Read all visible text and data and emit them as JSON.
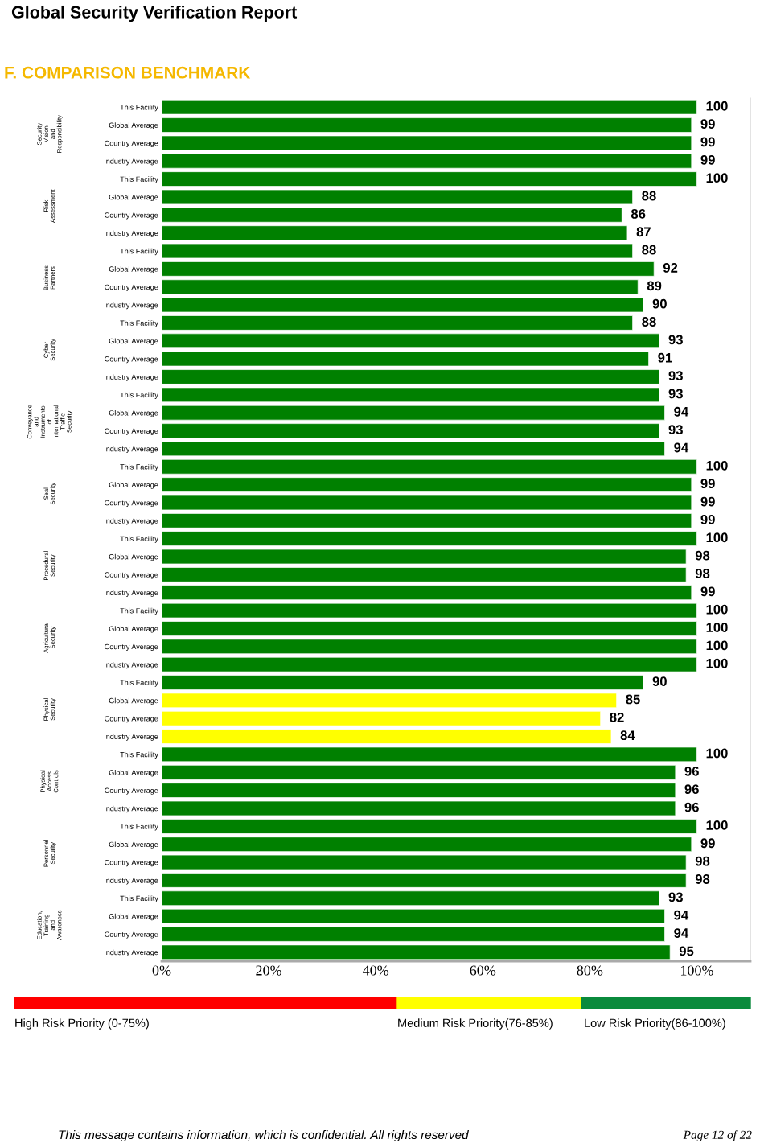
{
  "chart_data": {
    "type": "bar",
    "orientation": "horizontal",
    "title": "Global Security Verification Report",
    "subtitle": "F. COMPARISON BENCHMARK",
    "categories": [
      "This Facility",
      "Global Average",
      "Country Average",
      "Industry Average",
      "This Facility",
      "Global Average",
      "Country Average",
      "Industry Average",
      "This Facility",
      "Global Average",
      "Country Average",
      "Industry Average",
      "This Facility",
      "Global Average",
      "Country Average",
      "Industry Average",
      "This Facility",
      "Global Average",
      "Country Average",
      "Industry Average",
      "This Facility",
      "Global Average",
      "Country Average",
      "Industry Average",
      "This Facility",
      "Global Average",
      "Country Average",
      "Industry Average",
      "This Facility",
      "Global Average",
      "Country Average",
      "Industry Average",
      "This Facility",
      "Global Average",
      "Country Average",
      "Industry Average",
      "This Facility",
      "Global Average",
      "Country Average",
      "Industry Average",
      "This Facility",
      "Global Average",
      "Country Average",
      "Industry Average",
      "This Facility",
      "Global Average",
      "Country Average",
      "Industry Average"
    ],
    "values": [
      100,
      99,
      99,
      99,
      100,
      88,
      86,
      87,
      88,
      92,
      89,
      90,
      88,
      93,
      91,
      93,
      93,
      94,
      93,
      94,
      100,
      99,
      99,
      99,
      100,
      98,
      98,
      99,
      100,
      100,
      100,
      100,
      90,
      85,
      82,
      84,
      100,
      96,
      96,
      96,
      100,
      99,
      98,
      98,
      93,
      94,
      94,
      95
    ],
    "colors": [
      "#008000",
      "#008000",
      "#008000",
      "#008000",
      "#008000",
      "#008000",
      "#008000",
      "#008000",
      "#008000",
      "#008000",
      "#008000",
      "#008000",
      "#008000",
      "#008000",
      "#008000",
      "#008000",
      "#008000",
      "#008000",
      "#008000",
      "#008000",
      "#008000",
      "#008000",
      "#008000",
      "#008000",
      "#008000",
      "#008000",
      "#008000",
      "#008000",
      "#008000",
      "#008000",
      "#008000",
      "#008000",
      "#008000",
      "#ffff00",
      "#ffff00",
      "#ffff00",
      "#008000",
      "#008000",
      "#008000",
      "#008000",
      "#008000",
      "#008000",
      "#008000",
      "#008000",
      "#008000",
      "#008000",
      "#008000",
      "#008000"
    ],
    "data_labels": true,
    "xlim": [
      0,
      110
    ],
    "xticks": [
      {
        "value": 0,
        "label": "0%"
      },
      {
        "value": 20,
        "label": "20%"
      },
      {
        "value": 40,
        "label": "40%"
      },
      {
        "value": 60,
        "label": "60%"
      },
      {
        "value": 80,
        "label": "80%"
      },
      {
        "value": 100,
        "label": "100%"
      }
    ],
    "annotations": [
      "Security\nVision\nand\nResponsibility",
      "Risk\nAssessment",
      "Business\nPartners",
      "Cyber\nSecurity",
      "Conveyance\nand\nInstruments\nof\nInternational\nTraffic\nSecurity",
      "Seal\nSecurity",
      "Procedural\nSecurity",
      "Agricultural\nSecurity",
      "Physical\nSecurity",
      "Physical\nAccess\nControls",
      "Personnel\nSecurity",
      "Education,\nTraining\nand\nAwareness",
      "High Risk Priority (0-75%)",
      "Medium Risk Priority(76-85%)",
      "Low Risk Priority(86-100%)",
      "This message contains information, which is confidential. All rights reserved",
      "Page 12 of 22"
    ]
  }
}
